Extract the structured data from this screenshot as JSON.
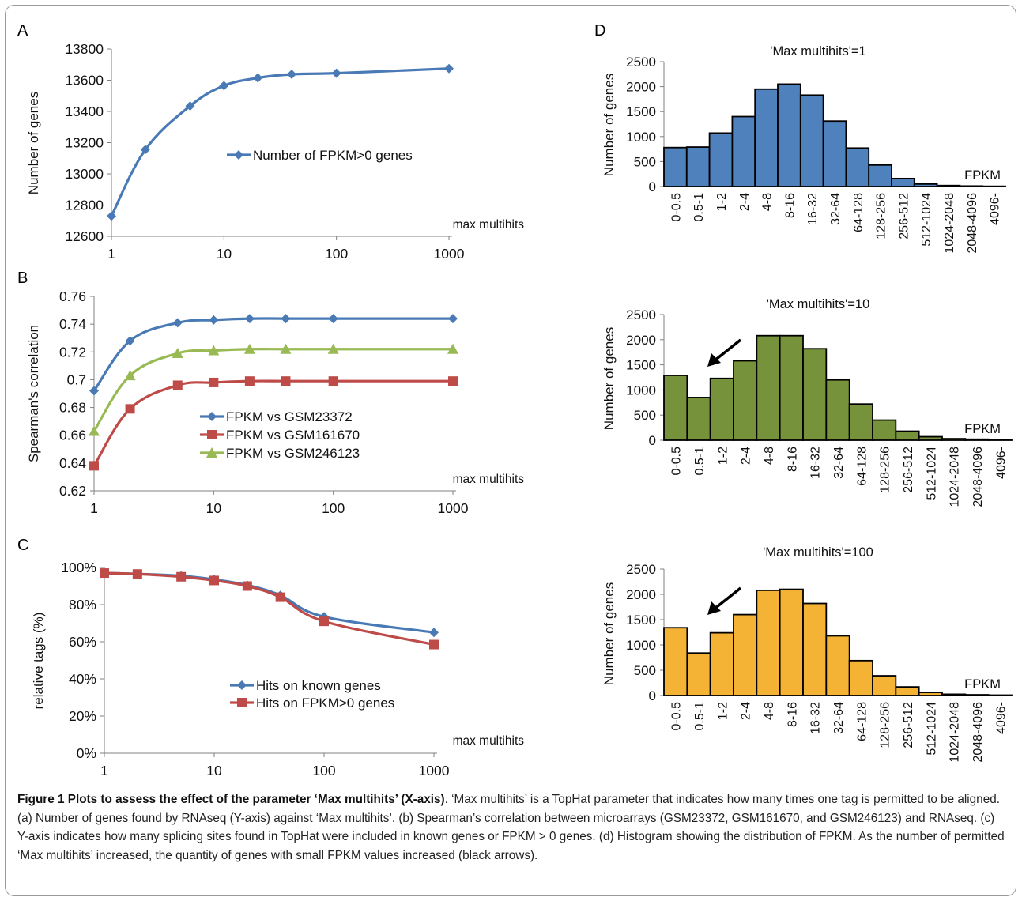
{
  "colors": {
    "series_blue": "#4a7ab5",
    "series_red": "#be4b48",
    "series_green": "#98b954",
    "hist_blue": "#4f81bd",
    "hist_green": "#76933c",
    "hist_orange": "#f5b335"
  },
  "chart_data": [
    {
      "panel": "A",
      "type": "line",
      "xlabel": "max multihits",
      "ylabel": "Number of genes",
      "xscale": "log",
      "xlim": [
        1,
        1000
      ],
      "ylim": [
        12600,
        13800
      ],
      "yticks": [
        12600,
        12800,
        13000,
        13200,
        13400,
        13600,
        13800
      ],
      "xticks": [
        1,
        10,
        100,
        1000
      ],
      "legend_position": "center",
      "series": [
        {
          "name": "Number of FPKM>0 genes",
          "color": "#4a7ab5",
          "marker": "diamond",
          "x": [
            1,
            2,
            5,
            10,
            20,
            40,
            100,
            1000
          ],
          "y": [
            12730,
            13155,
            13435,
            13565,
            13615,
            13638,
            13645,
            13675
          ]
        }
      ]
    },
    {
      "panel": "B",
      "type": "line",
      "xlabel": "max multihits",
      "ylabel": "Spearman's  correlation",
      "xscale": "log",
      "xlim": [
        1,
        1000
      ],
      "ylim": [
        0.62,
        0.76
      ],
      "yticks": [
        0.62,
        0.64,
        0.66,
        0.68,
        0.7,
        0.72,
        0.74,
        0.76
      ],
      "ytick_labels": [
        "0.62",
        "0.64",
        "0.66",
        "0.68",
        "0.7",
        "0.72",
        "0.74",
        "0.76"
      ],
      "xticks": [
        1,
        10,
        100,
        1000
      ],
      "legend_position": "lower-center",
      "series": [
        {
          "name": "FPKM vs GSM23372",
          "color": "#4a7ab5",
          "marker": "diamond",
          "x": [
            1,
            2,
            5,
            10,
            20,
            40,
            100,
            1000
          ],
          "y": [
            0.692,
            0.728,
            0.741,
            0.743,
            0.744,
            0.744,
            0.744,
            0.744
          ]
        },
        {
          "name": "FPKM vs GSM161670",
          "color": "#be4b48",
          "marker": "square",
          "x": [
            1,
            2,
            5,
            10,
            20,
            40,
            100,
            1000
          ],
          "y": [
            0.638,
            0.679,
            0.696,
            0.698,
            0.699,
            0.699,
            0.699,
            0.699
          ]
        },
        {
          "name": "FPKM vs GSM246123",
          "color": "#98b954",
          "marker": "triangle",
          "x": [
            1,
            2,
            5,
            10,
            20,
            40,
            100,
            1000
          ],
          "y": [
            0.663,
            0.703,
            0.719,
            0.721,
            0.722,
            0.722,
            0.722,
            0.722
          ]
        }
      ]
    },
    {
      "panel": "C",
      "type": "line",
      "xlabel": "max multihits",
      "ylabel": "relative tags (%)",
      "xscale": "log",
      "xlim": [
        1,
        1000
      ],
      "ylim": [
        0,
        100
      ],
      "yticks": [
        0,
        20,
        40,
        60,
        80,
        100
      ],
      "ytick_labels": [
        "0%",
        "20%",
        "40%",
        "60%",
        "80%",
        "100%"
      ],
      "xticks": [
        1,
        10,
        100,
        1000
      ],
      "legend_position": "lower-center",
      "series": [
        {
          "name": "Hits on known genes",
          "color": "#4a7ab5",
          "marker": "diamond",
          "x": [
            1,
            2,
            5,
            10,
            20,
            40,
            100,
            1000
          ],
          "y": [
            97,
            96.5,
            95.5,
            93.5,
            90.5,
            85,
            73.5,
            65
          ]
        },
        {
          "name": "Hits on FPKM>0 genes",
          "color": "#be4b48",
          "marker": "square",
          "x": [
            1,
            2,
            5,
            10,
            20,
            40,
            100,
            1000
          ],
          "y": [
            97,
            96.5,
            95,
            93,
            90,
            84,
            71,
            58.5
          ]
        }
      ]
    },
    {
      "panel": "D",
      "type": "bar",
      "title": "'Max multihits'=1",
      "xlabel": "FPKM",
      "ylabel": "Number of genes",
      "ylim": [
        0,
        2500
      ],
      "yticks": [
        0,
        500,
        1000,
        1500,
        2000,
        2500
      ],
      "categories": [
        "0-0.5",
        "0.5-1",
        "1-2",
        "2-4",
        "4-8",
        "8-16",
        "16-32",
        "32-64",
        "64-128",
        "128-256",
        "256-512",
        "512-1024",
        "1024-2048",
        "2048-4096",
        "4096-"
      ],
      "values": [
        780,
        790,
        1070,
        1400,
        1950,
        2050,
        1830,
        1310,
        770,
        430,
        160,
        50,
        20,
        10,
        5
      ],
      "color": "#4f81bd",
      "arrow": false
    },
    {
      "panel": "D",
      "type": "bar",
      "title": "'Max multihits'=10",
      "xlabel": "FPKM",
      "ylabel": "Number of genes",
      "ylim": [
        0,
        2500
      ],
      "yticks": [
        0,
        500,
        1000,
        1500,
        2000,
        2500
      ],
      "categories": [
        "0-0.5",
        "0.5-1",
        "1-2",
        "2-4",
        "4-8",
        "8-16",
        "16-32",
        "32-64",
        "64-128",
        "128-256",
        "256-512",
        "512-1024",
        "1024-2048",
        "2048-4096",
        "4096-"
      ],
      "values": [
        1290,
        850,
        1230,
        1580,
        2080,
        2080,
        1820,
        1200,
        720,
        400,
        180,
        70,
        30,
        20,
        10
      ],
      "color": "#76933c",
      "arrow": true
    },
    {
      "panel": "D",
      "type": "bar",
      "title": "'Max multihits'=100",
      "xlabel": "FPKM",
      "ylabel": "Number of genes",
      "ylim": [
        0,
        2500
      ],
      "yticks": [
        0,
        500,
        1000,
        1500,
        2000,
        2500
      ],
      "categories": [
        "0-0.5",
        "0.5-1",
        "1-2",
        "2-4",
        "4-8",
        "8-16",
        "16-32",
        "32-64",
        "64-128",
        "128-256",
        "256-512",
        "512-1024",
        "1024-2048",
        "2048-4096",
        "4096-"
      ],
      "values": [
        1340,
        840,
        1240,
        1600,
        2080,
        2100,
        1820,
        1180,
        690,
        390,
        170,
        60,
        25,
        15,
        8
      ],
      "color": "#f5b335",
      "arrow": true
    }
  ],
  "panel_labels": {
    "a": "A",
    "b": "B",
    "c": "C",
    "d": "D"
  },
  "caption": {
    "bold": "Figure 1 Plots to assess the effect of the parameter ‘Max multihits’ (X-axis)",
    "text": ". ‘Max multihits’ is a TopHat parameter that indicates how many times one tag is permitted to be aligned. (a) Number of genes found by RNAseq (Y-axis) against ‘Max multihits’. (b) Spearman’s correlation between microarrays (GSM23372, GSM161670, and GSM246123) and RNAseq. (c) Y-axis indicates how many splicing sites found in TopHat were included in known genes or FPKM > 0 genes. (d) Histogram showing the distribution of FPKM. As the number of permitted ‘Max multihits’ increased, the quantity of genes with small FPKM values increased (black arrows)."
  }
}
